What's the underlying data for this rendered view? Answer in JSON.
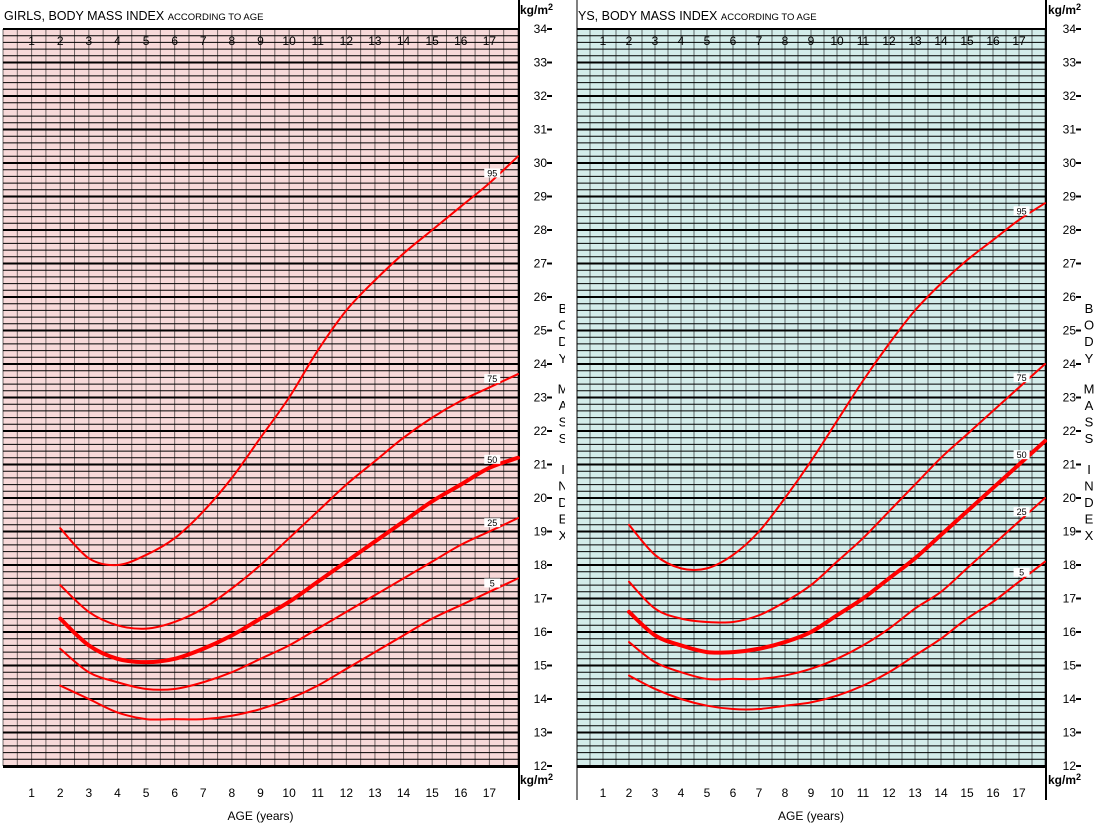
{
  "chart_data": [
    {
      "type": "line",
      "title": "GIRLS, BODY MASS INDEX",
      "subtitle": "ACCORDING TO AGE",
      "xlabel": "AGE (years)",
      "ylabel": "BODY MASS INDEX",
      "yunit": "kg/m²",
      "xlim": [
        0,
        18
      ],
      "ylim": [
        12,
        34
      ],
      "xticks": [
        "1",
        "2",
        "3",
        "4",
        "5",
        "6",
        "7",
        "8",
        "9",
        "10",
        "11",
        "12",
        "13",
        "14",
        "15",
        "16",
        "17"
      ],
      "yticks": [
        "12",
        "13",
        "14",
        "15",
        "16",
        "17",
        "18",
        "19",
        "20",
        "21",
        "22",
        "23",
        "24",
        "25",
        "26",
        "27",
        "28",
        "29",
        "30",
        "31",
        "32",
        "33",
        "34"
      ],
      "grid": true,
      "colors": {
        "background": "#f7d9d9",
        "curve": "#ff0000",
        "grid": "#000000"
      },
      "series": [
        {
          "name": "95",
          "x": [
            2,
            3,
            4,
            5,
            6,
            7,
            8,
            9,
            10,
            11,
            12,
            13,
            14,
            15,
            16,
            17,
            18
          ],
          "values": [
            19.1,
            18.2,
            18.0,
            18.3,
            18.8,
            19.6,
            20.6,
            21.8,
            23.0,
            24.4,
            25.6,
            26.5,
            27.3,
            28.0,
            28.7,
            29.4,
            30.2
          ]
        },
        {
          "name": "75",
          "x": [
            2,
            3,
            4,
            5,
            6,
            7,
            8,
            9,
            10,
            11,
            12,
            13,
            14,
            15,
            16,
            17,
            18
          ],
          "values": [
            17.4,
            16.6,
            16.2,
            16.1,
            16.3,
            16.7,
            17.3,
            18.0,
            18.8,
            19.6,
            20.4,
            21.1,
            21.8,
            22.4,
            22.9,
            23.3,
            23.7
          ]
        },
        {
          "name": "50",
          "x": [
            2,
            3,
            4,
            5,
            6,
            7,
            8,
            9,
            10,
            11,
            12,
            13,
            14,
            15,
            16,
            17,
            18
          ],
          "values": [
            16.4,
            15.6,
            15.2,
            15.1,
            15.2,
            15.5,
            15.9,
            16.4,
            16.9,
            17.5,
            18.1,
            18.7,
            19.3,
            19.9,
            20.4,
            20.9,
            21.2
          ]
        },
        {
          "name": "25",
          "x": [
            2,
            3,
            4,
            5,
            6,
            7,
            8,
            9,
            10,
            11,
            12,
            13,
            14,
            15,
            16,
            17,
            18
          ],
          "values": [
            15.5,
            14.8,
            14.5,
            14.3,
            14.3,
            14.5,
            14.8,
            15.2,
            15.6,
            16.1,
            16.6,
            17.1,
            17.6,
            18.1,
            18.6,
            19.0,
            19.4
          ]
        },
        {
          "name": "5",
          "x": [
            2,
            3,
            4,
            5,
            6,
            7,
            8,
            9,
            10,
            11,
            12,
            13,
            14,
            15,
            16,
            17,
            18
          ],
          "values": [
            14.4,
            14.0,
            13.6,
            13.4,
            13.4,
            13.4,
            13.5,
            13.7,
            14.0,
            14.4,
            14.9,
            15.4,
            15.9,
            16.4,
            16.8,
            17.2,
            17.6
          ]
        }
      ]
    },
    {
      "type": "line",
      "title": "YS, BODY MASS INDEX",
      "subtitle": "ACCORDING TO AGE",
      "xlabel": "AGE (years)",
      "ylabel": "BODY MASS INDEX",
      "yunit": "kg/m²",
      "xlim": [
        0,
        18
      ],
      "ylim": [
        12,
        34
      ],
      "xticks": [
        "1",
        "2",
        "3",
        "4",
        "5",
        "6",
        "7",
        "8",
        "9",
        "10",
        "11",
        "12",
        "13",
        "14",
        "15",
        "16",
        "17"
      ],
      "yticks": [
        "12",
        "13",
        "14",
        "15",
        "16",
        "17",
        "18",
        "19",
        "20",
        "21",
        "22",
        "23",
        "24",
        "25",
        "26",
        "27",
        "28",
        "29",
        "30",
        "31",
        "32",
        "33",
        "34"
      ],
      "grid": true,
      "colors": {
        "background": "#d3ecea",
        "curve": "#ff0000",
        "grid": "#000000"
      },
      "series": [
        {
          "name": "95",
          "x": [
            2,
            3,
            4,
            5,
            6,
            7,
            8,
            9,
            10,
            11,
            12,
            13,
            14,
            15,
            16,
            17,
            18
          ],
          "values": [
            19.2,
            18.3,
            17.9,
            17.9,
            18.3,
            19.0,
            20.0,
            21.1,
            22.3,
            23.5,
            24.6,
            25.6,
            26.4,
            27.1,
            27.7,
            28.3,
            28.8
          ]
        },
        {
          "name": "75",
          "x": [
            2,
            3,
            4,
            5,
            6,
            7,
            8,
            9,
            10,
            11,
            12,
            13,
            14,
            15,
            16,
            17,
            18
          ],
          "values": [
            17.5,
            16.7,
            16.4,
            16.3,
            16.3,
            16.5,
            16.9,
            17.4,
            18.1,
            18.8,
            19.6,
            20.4,
            21.2,
            21.9,
            22.6,
            23.3,
            24.0
          ]
        },
        {
          "name": "50",
          "x": [
            2,
            3,
            4,
            5,
            6,
            7,
            8,
            9,
            10,
            11,
            12,
            13,
            14,
            15,
            16,
            17,
            18
          ],
          "values": [
            16.6,
            15.9,
            15.6,
            15.4,
            15.4,
            15.5,
            15.7,
            16.0,
            16.5,
            17.0,
            17.6,
            18.2,
            18.9,
            19.6,
            20.3,
            21.0,
            21.7
          ]
        },
        {
          "name": "25",
          "x": [
            2,
            3,
            4,
            5,
            6,
            7,
            8,
            9,
            10,
            11,
            12,
            13,
            14,
            15,
            16,
            17,
            18
          ],
          "values": [
            15.7,
            15.1,
            14.8,
            14.6,
            14.6,
            14.6,
            14.7,
            14.9,
            15.2,
            15.6,
            16.1,
            16.7,
            17.2,
            17.9,
            18.6,
            19.3,
            20.0
          ]
        },
        {
          "name": "5",
          "x": [
            2,
            3,
            4,
            5,
            6,
            7,
            8,
            9,
            10,
            11,
            12,
            13,
            14,
            15,
            16,
            17,
            18
          ],
          "values": [
            14.7,
            14.3,
            14.0,
            13.8,
            13.7,
            13.7,
            13.8,
            13.9,
            14.1,
            14.4,
            14.8,
            15.3,
            15.8,
            16.4,
            16.9,
            17.5,
            18.1
          ]
        }
      ]
    }
  ]
}
